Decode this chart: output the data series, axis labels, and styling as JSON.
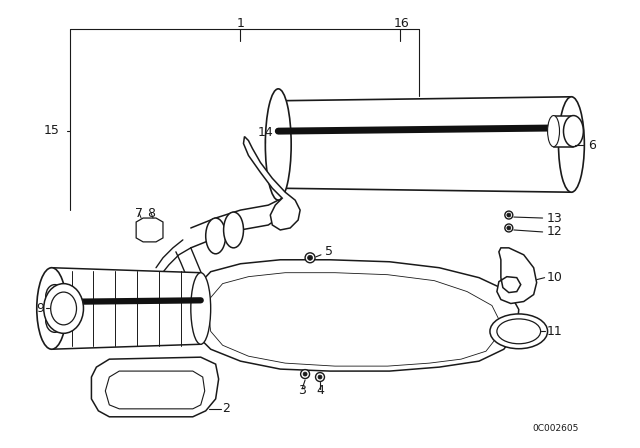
{
  "bg_color": "#ffffff",
  "line_color": "#1a1a1a",
  "fig_width": 6.4,
  "fig_height": 4.48,
  "dpi": 100,
  "watermark": "0C002605"
}
